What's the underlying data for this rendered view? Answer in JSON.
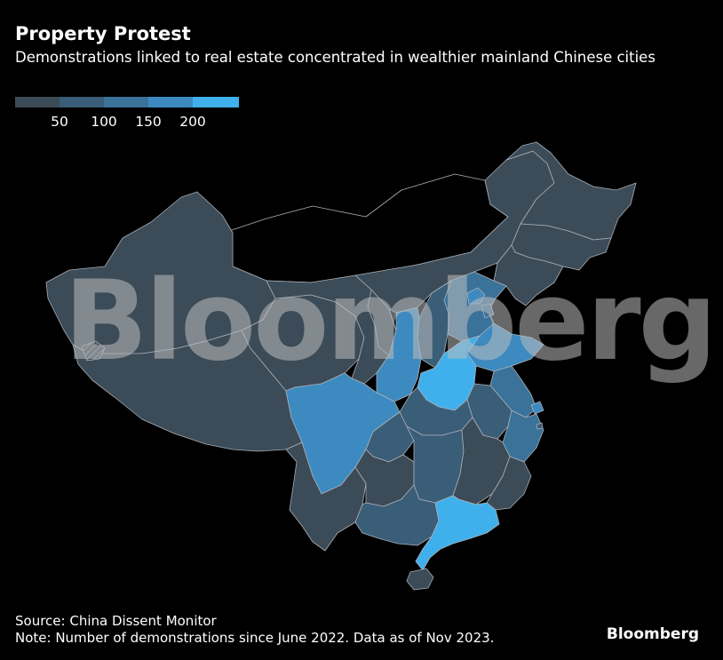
{
  "title": "Property Protest",
  "subtitle": "Demonstrations linked to real estate concentrated in wealthier mainland Chinese cities",
  "legend": {
    "ticks": [
      "50",
      "100",
      "150",
      "200"
    ],
    "bins": [
      {
        "color": "#3b4b57"
      },
      {
        "color": "#3a5d78"
      },
      {
        "color": "#3a7299"
      },
      {
        "color": "#3c8ac0"
      },
      {
        "color": "#3fb0ec"
      }
    ]
  },
  "watermark": "Bloomberg",
  "source": "Source: China Dissent Monitor",
  "note": "Note: Number of demonstrations since June 2022. Data as of Nov 2023.",
  "brand": "Bloomberg",
  "colors": {
    "background": "#000000",
    "border": "#aab0b8",
    "no_data": "#000000",
    "hatch": "#6f7780"
  },
  "regions": [
    {
      "name": "Xinjiang",
      "level": 0
    },
    {
      "name": "Tibet",
      "level": 0
    },
    {
      "name": "Qinghai",
      "level": 0
    },
    {
      "name": "Gansu",
      "level": 0
    },
    {
      "name": "Inner Mongolia",
      "level": 0
    },
    {
      "name": "Heilongjiang",
      "level": 0
    },
    {
      "name": "Jilin",
      "level": 0
    },
    {
      "name": "Liaoning",
      "level": 0
    },
    {
      "name": "Hebei",
      "level": 2
    },
    {
      "name": "Beijing",
      "level": 3
    },
    {
      "name": "Tianjin",
      "level": 2
    },
    {
      "name": "Shanxi",
      "level": 1
    },
    {
      "name": "Shaanxi",
      "level": 3
    },
    {
      "name": "Ningxia",
      "level": 0
    },
    {
      "name": "Shandong",
      "level": 3
    },
    {
      "name": "Henan",
      "level": 4
    },
    {
      "name": "Jiangsu",
      "level": 2
    },
    {
      "name": "Anhui",
      "level": 1
    },
    {
      "name": "Shanghai",
      "level": 3
    },
    {
      "name": "Zhejiang",
      "level": 2
    },
    {
      "name": "Hubei",
      "level": 1
    },
    {
      "name": "Sichuan",
      "level": 3
    },
    {
      "name": "Chongqing",
      "level": 1
    },
    {
      "name": "Yunnan",
      "level": 0
    },
    {
      "name": "Guizhou",
      "level": 0
    },
    {
      "name": "Hunan",
      "level": 1
    },
    {
      "name": "Jiangxi",
      "level": 0
    },
    {
      "name": "Fujian",
      "level": 0
    },
    {
      "name": "Guangxi",
      "level": 1
    },
    {
      "name": "Guangdong",
      "level": 4
    },
    {
      "name": "Hainan",
      "level": 0
    }
  ]
}
